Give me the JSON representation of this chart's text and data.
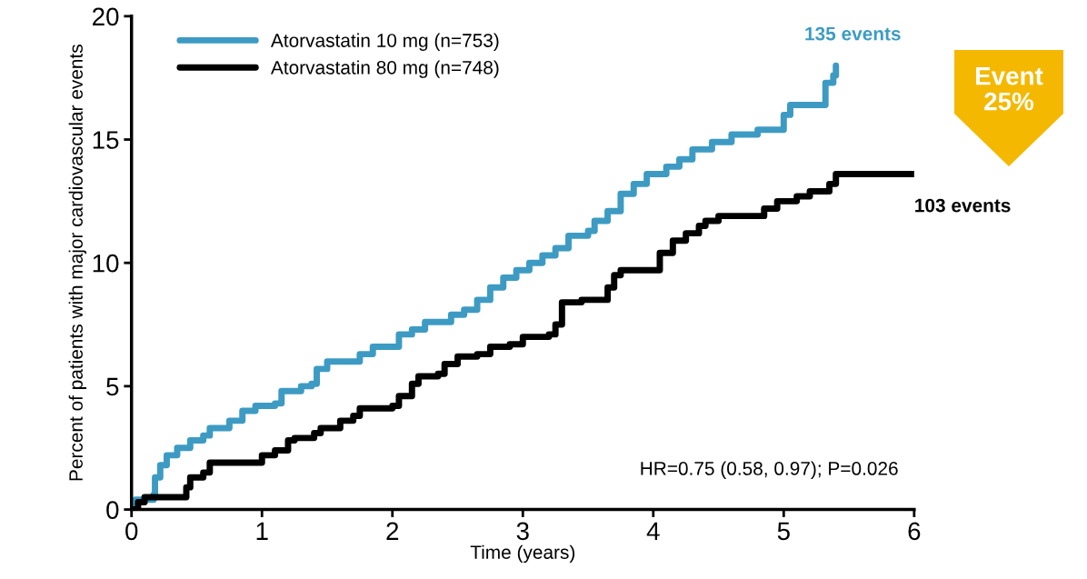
{
  "chart_data": {
    "type": "step",
    "xlabel": "Time (years)",
    "ylabel": "Percent of patients with major cardiovascular events",
    "xlim": [
      0,
      6
    ],
    "ylim": [
      0,
      20
    ],
    "xticks": [
      0,
      1,
      2,
      3,
      4,
      5,
      6
    ],
    "yticks": [
      0,
      5,
      10,
      15,
      20
    ],
    "grid": false,
    "legend": "top left",
    "series": [
      {
        "name": "Atorvastatin 10 mg (n=753)",
        "color": "#3d9bc3",
        "x": [
          0,
          0.03,
          0.17,
          0.18,
          0.22,
          0.27,
          0.35,
          0.45,
          0.55,
          0.6,
          0.75,
          0.85,
          0.95,
          1.1,
          1.15,
          1.3,
          1.38,
          1.42,
          1.5,
          1.75,
          1.85,
          2.05,
          2.15,
          2.25,
          2.45,
          2.55,
          2.65,
          2.75,
          2.85,
          2.95,
          3.05,
          3.15,
          3.25,
          3.35,
          3.5,
          3.55,
          3.65,
          3.75,
          3.85,
          3.95,
          4.1,
          4.2,
          4.3,
          4.45,
          4.6,
          4.8,
          5.0,
          5.05,
          5.3,
          5.32,
          5.38,
          5.4
        ],
        "values": [
          0,
          0.4,
          0.6,
          1.3,
          1.8,
          2.2,
          2.5,
          2.8,
          3.0,
          3.3,
          3.6,
          4.0,
          4.2,
          4.3,
          4.8,
          5.0,
          5.1,
          5.7,
          6.0,
          6.3,
          6.6,
          7.1,
          7.3,
          7.6,
          7.9,
          8.1,
          8.5,
          9.0,
          9.4,
          9.7,
          10.0,
          10.3,
          10.6,
          11.1,
          11.3,
          11.7,
          12.1,
          12.8,
          13.2,
          13.6,
          13.9,
          14.2,
          14.6,
          14.9,
          15.2,
          15.4,
          16.0,
          16.4,
          16.4,
          17.3,
          17.6,
          18.0
        ]
      },
      {
        "name": "Atorvastatin 80 mg (n=748)",
        "color": "#000000",
        "x": [
          0,
          0.05,
          0.1,
          0.42,
          0.45,
          0.55,
          0.6,
          1.0,
          1.1,
          1.2,
          1.25,
          1.4,
          1.45,
          1.6,
          1.7,
          1.75,
          2.0,
          2.05,
          2.15,
          2.2,
          2.35,
          2.4,
          2.5,
          2.65,
          2.75,
          2.9,
          3.0,
          3.2,
          3.25,
          3.3,
          3.45,
          3.65,
          3.7,
          3.75,
          4.05,
          4.15,
          4.25,
          4.35,
          4.4,
          4.5,
          4.85,
          4.95,
          5.1,
          5.2,
          5.35,
          5.4,
          6.0
        ],
        "values": [
          0,
          0.3,
          0.5,
          0.9,
          1.3,
          1.5,
          1.9,
          2.2,
          2.4,
          2.8,
          2.9,
          3.1,
          3.3,
          3.6,
          3.8,
          4.1,
          4.2,
          4.6,
          5.1,
          5.4,
          5.5,
          5.9,
          6.2,
          6.3,
          6.6,
          6.7,
          7.0,
          7.1,
          7.5,
          8.4,
          8.5,
          9.0,
          9.5,
          9.7,
          10.4,
          10.9,
          11.2,
          11.5,
          11.7,
          11.9,
          12.2,
          12.5,
          12.7,
          12.9,
          13.2,
          13.6,
          13.6
        ]
      }
    ],
    "annotations": [
      {
        "text": "135 events",
        "x": 5.4,
        "y": 18.0
      },
      {
        "text": "103 events",
        "x": 6.0,
        "y": 13.6
      },
      "HR=0.75 (0.58, 0.97); P=0.026",
      "Event\n25%"
    ]
  }
}
